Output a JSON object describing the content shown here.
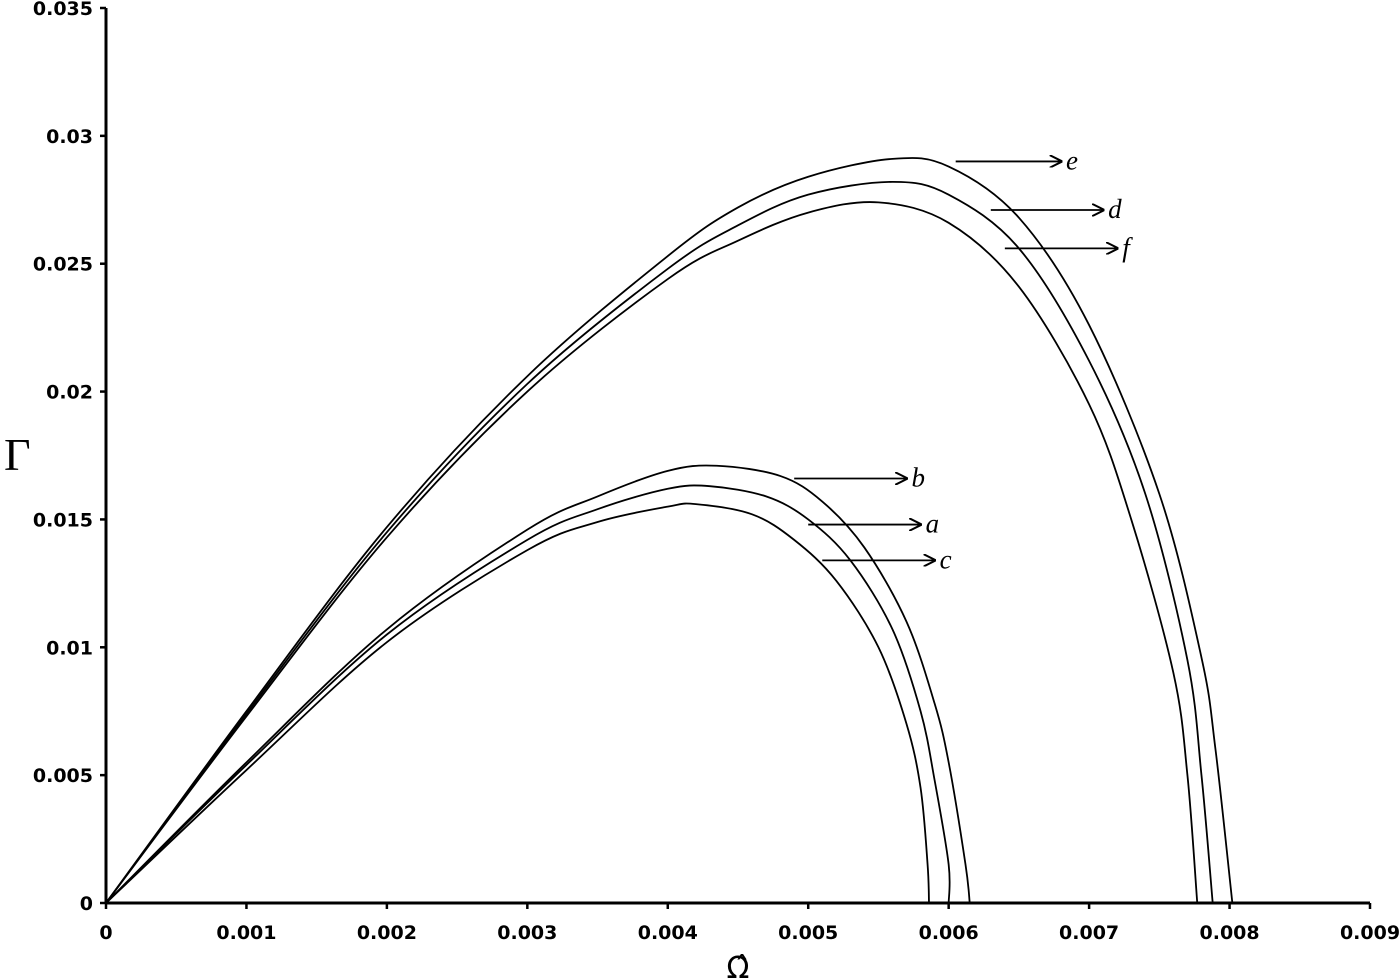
{
  "chart_data": {
    "type": "line",
    "title": "",
    "xlabel": "Ω̂",
    "ylabel": "Γ",
    "xlim": [
      0,
      0.009
    ],
    "ylim": [
      0,
      0.035
    ],
    "grid": false,
    "legend": "none (curves labelled a–f with arrows)",
    "x_ticks": [
      "0",
      "0.001",
      "0.002",
      "0.003",
      "0.004",
      "0.005",
      "0.006",
      "0.007",
      "0.008",
      "0.009"
    ],
    "y_ticks": [
      "0",
      "0.005",
      "0.01",
      "0.015",
      "0.02",
      "0.025",
      "0.03",
      "0.035"
    ],
    "series": [
      {
        "name": "a",
        "x": [
          0,
          0.001,
          0.002,
          0.003,
          0.0035,
          0.004,
          0.0043,
          0.0047,
          0.005,
          0.0053,
          0.0056,
          0.0058,
          0.0059,
          0.006,
          0.006
        ],
        "y": [
          0,
          0.0054,
          0.0105,
          0.0142,
          0.0154,
          0.0162,
          0.0163,
          0.0159,
          0.015,
          0.0134,
          0.0107,
          0.0075,
          0.0048,
          0.0015,
          0
        ]
      },
      {
        "name": "b",
        "x": [
          0,
          0.001,
          0.002,
          0.003,
          0.0035,
          0.004,
          0.00435,
          0.0048,
          0.0051,
          0.0054,
          0.0057,
          0.0059,
          0.006,
          0.00612,
          0.00615
        ],
        "y": [
          0,
          0.0055,
          0.0107,
          0.0146,
          0.0159,
          0.0169,
          0.0171,
          0.0167,
          0.0157,
          0.0139,
          0.011,
          0.0078,
          0.0055,
          0.0015,
          0
        ]
      },
      {
        "name": "c",
        "x": [
          0,
          0.001,
          0.002,
          0.003,
          0.0035,
          0.004,
          0.0042,
          0.0046,
          0.0049,
          0.0052,
          0.0055,
          0.0057,
          0.0058,
          0.00585,
          0.00586
        ],
        "y": [
          0,
          0.0052,
          0.0102,
          0.0138,
          0.0149,
          0.0155,
          0.0156,
          0.0152,
          0.0142,
          0.0126,
          0.01,
          0.007,
          0.0045,
          0.0015,
          0
        ]
      },
      {
        "name": "d",
        "x": [
          0,
          0.001,
          0.002,
          0.003,
          0.004,
          0.0045,
          0.005,
          0.0056,
          0.006,
          0.0065,
          0.007,
          0.0074,
          0.0077,
          0.0078,
          0.00788
        ],
        "y": [
          0,
          0.0074,
          0.0145,
          0.0203,
          0.0248,
          0.0265,
          0.0277,
          0.0282,
          0.0277,
          0.0256,
          0.0212,
          0.016,
          0.0095,
          0.005,
          0
        ]
      },
      {
        "name": "e",
        "x": [
          0,
          0.001,
          0.002,
          0.003,
          0.004,
          0.0045,
          0.005,
          0.0056,
          0.006,
          0.0065,
          0.007,
          0.0075,
          0.0078,
          0.0079,
          0.00802
        ],
        "y": [
          0,
          0.0075,
          0.0147,
          0.0206,
          0.0253,
          0.0272,
          0.0284,
          0.0291,
          0.0288,
          0.0268,
          0.0226,
          0.016,
          0.0096,
          0.006,
          0
        ]
      },
      {
        "name": "f",
        "x": [
          0,
          0.001,
          0.002,
          0.003,
          0.004,
          0.0045,
          0.005,
          0.0055,
          0.006,
          0.0065,
          0.007,
          0.0073,
          0.0076,
          0.0077,
          0.00777
        ],
        "y": [
          0,
          0.0073,
          0.0143,
          0.02,
          0.0244,
          0.0259,
          0.027,
          0.0274,
          0.0266,
          0.0241,
          0.0195,
          0.015,
          0.009,
          0.005,
          0
        ]
      }
    ],
    "annotations": [
      {
        "label": "e",
        "arrow_from": [
          0.00605,
          0.029
        ],
        "arrow_to": [
          0.0068,
          0.029
        ]
      },
      {
        "label": "d",
        "arrow_from": [
          0.0063,
          0.0271
        ],
        "arrow_to": [
          0.0071,
          0.0271
        ]
      },
      {
        "label": "f",
        "arrow_from": [
          0.0064,
          0.0256
        ],
        "arrow_to": [
          0.0072,
          0.0256
        ]
      },
      {
        "label": "b",
        "arrow_from": [
          0.0049,
          0.0166
        ],
        "arrow_to": [
          0.0057,
          0.0166
        ]
      },
      {
        "label": "a",
        "arrow_from": [
          0.005,
          0.0148
        ],
        "arrow_to": [
          0.0058,
          0.0148
        ]
      },
      {
        "label": "c",
        "arrow_from": [
          0.0051,
          0.0134
        ],
        "arrow_to": [
          0.0059,
          0.0134
        ]
      }
    ]
  }
}
